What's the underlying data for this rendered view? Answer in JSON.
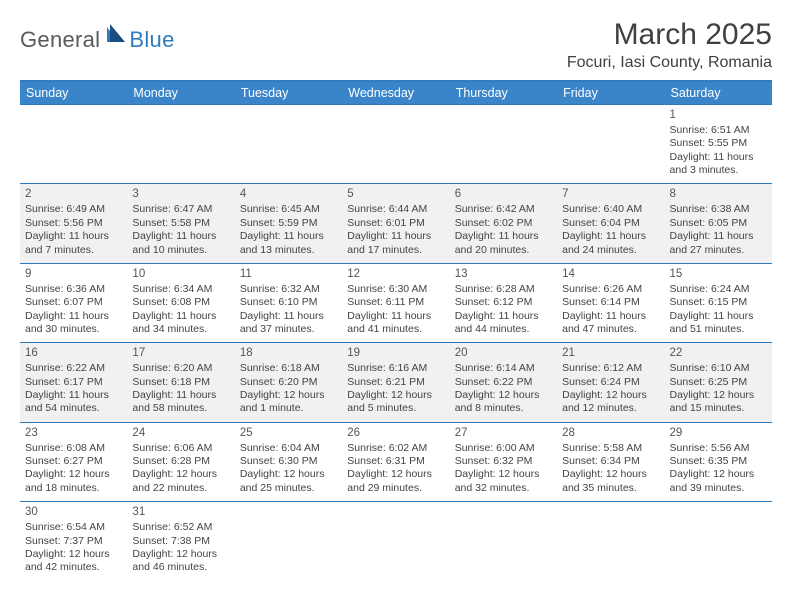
{
  "logo": {
    "general": "General",
    "blue": "Blue"
  },
  "title": {
    "month": "March 2025",
    "location": "Focuri, Iasi County, Romania"
  },
  "colors": {
    "header_bg": "#3a85c9",
    "header_border": "#2f7bbf",
    "row_alt_bg": "#f1f1f1",
    "text": "#444444",
    "logo_gray": "#5a5a5a",
    "logo_blue": "#2f7bbf"
  },
  "weekdays": [
    "Sunday",
    "Monday",
    "Tuesday",
    "Wednesday",
    "Thursday",
    "Friday",
    "Saturday"
  ],
  "weeks": [
    [
      null,
      null,
      null,
      null,
      null,
      null,
      {
        "n": "1",
        "sr": "Sunrise: 6:51 AM",
        "ss": "Sunset: 5:55 PM",
        "dl": "Daylight: 11 hours and 3 minutes."
      }
    ],
    [
      {
        "n": "2",
        "sr": "Sunrise: 6:49 AM",
        "ss": "Sunset: 5:56 PM",
        "dl": "Daylight: 11 hours and 7 minutes."
      },
      {
        "n": "3",
        "sr": "Sunrise: 6:47 AM",
        "ss": "Sunset: 5:58 PM",
        "dl": "Daylight: 11 hours and 10 minutes."
      },
      {
        "n": "4",
        "sr": "Sunrise: 6:45 AM",
        "ss": "Sunset: 5:59 PM",
        "dl": "Daylight: 11 hours and 13 minutes."
      },
      {
        "n": "5",
        "sr": "Sunrise: 6:44 AM",
        "ss": "Sunset: 6:01 PM",
        "dl": "Daylight: 11 hours and 17 minutes."
      },
      {
        "n": "6",
        "sr": "Sunrise: 6:42 AM",
        "ss": "Sunset: 6:02 PM",
        "dl": "Daylight: 11 hours and 20 minutes."
      },
      {
        "n": "7",
        "sr": "Sunrise: 6:40 AM",
        "ss": "Sunset: 6:04 PM",
        "dl": "Daylight: 11 hours and 24 minutes."
      },
      {
        "n": "8",
        "sr": "Sunrise: 6:38 AM",
        "ss": "Sunset: 6:05 PM",
        "dl": "Daylight: 11 hours and 27 minutes."
      }
    ],
    [
      {
        "n": "9",
        "sr": "Sunrise: 6:36 AM",
        "ss": "Sunset: 6:07 PM",
        "dl": "Daylight: 11 hours and 30 minutes."
      },
      {
        "n": "10",
        "sr": "Sunrise: 6:34 AM",
        "ss": "Sunset: 6:08 PM",
        "dl": "Daylight: 11 hours and 34 minutes."
      },
      {
        "n": "11",
        "sr": "Sunrise: 6:32 AM",
        "ss": "Sunset: 6:10 PM",
        "dl": "Daylight: 11 hours and 37 minutes."
      },
      {
        "n": "12",
        "sr": "Sunrise: 6:30 AM",
        "ss": "Sunset: 6:11 PM",
        "dl": "Daylight: 11 hours and 41 minutes."
      },
      {
        "n": "13",
        "sr": "Sunrise: 6:28 AM",
        "ss": "Sunset: 6:12 PM",
        "dl": "Daylight: 11 hours and 44 minutes."
      },
      {
        "n": "14",
        "sr": "Sunrise: 6:26 AM",
        "ss": "Sunset: 6:14 PM",
        "dl": "Daylight: 11 hours and 47 minutes."
      },
      {
        "n": "15",
        "sr": "Sunrise: 6:24 AM",
        "ss": "Sunset: 6:15 PM",
        "dl": "Daylight: 11 hours and 51 minutes."
      }
    ],
    [
      {
        "n": "16",
        "sr": "Sunrise: 6:22 AM",
        "ss": "Sunset: 6:17 PM",
        "dl": "Daylight: 11 hours and 54 minutes."
      },
      {
        "n": "17",
        "sr": "Sunrise: 6:20 AM",
        "ss": "Sunset: 6:18 PM",
        "dl": "Daylight: 11 hours and 58 minutes."
      },
      {
        "n": "18",
        "sr": "Sunrise: 6:18 AM",
        "ss": "Sunset: 6:20 PM",
        "dl": "Daylight: 12 hours and 1 minute."
      },
      {
        "n": "19",
        "sr": "Sunrise: 6:16 AM",
        "ss": "Sunset: 6:21 PM",
        "dl": "Daylight: 12 hours and 5 minutes."
      },
      {
        "n": "20",
        "sr": "Sunrise: 6:14 AM",
        "ss": "Sunset: 6:22 PM",
        "dl": "Daylight: 12 hours and 8 minutes."
      },
      {
        "n": "21",
        "sr": "Sunrise: 6:12 AM",
        "ss": "Sunset: 6:24 PM",
        "dl": "Daylight: 12 hours and 12 minutes."
      },
      {
        "n": "22",
        "sr": "Sunrise: 6:10 AM",
        "ss": "Sunset: 6:25 PM",
        "dl": "Daylight: 12 hours and 15 minutes."
      }
    ],
    [
      {
        "n": "23",
        "sr": "Sunrise: 6:08 AM",
        "ss": "Sunset: 6:27 PM",
        "dl": "Daylight: 12 hours and 18 minutes."
      },
      {
        "n": "24",
        "sr": "Sunrise: 6:06 AM",
        "ss": "Sunset: 6:28 PM",
        "dl": "Daylight: 12 hours and 22 minutes."
      },
      {
        "n": "25",
        "sr": "Sunrise: 6:04 AM",
        "ss": "Sunset: 6:30 PM",
        "dl": "Daylight: 12 hours and 25 minutes."
      },
      {
        "n": "26",
        "sr": "Sunrise: 6:02 AM",
        "ss": "Sunset: 6:31 PM",
        "dl": "Daylight: 12 hours and 29 minutes."
      },
      {
        "n": "27",
        "sr": "Sunrise: 6:00 AM",
        "ss": "Sunset: 6:32 PM",
        "dl": "Daylight: 12 hours and 32 minutes."
      },
      {
        "n": "28",
        "sr": "Sunrise: 5:58 AM",
        "ss": "Sunset: 6:34 PM",
        "dl": "Daylight: 12 hours and 35 minutes."
      },
      {
        "n": "29",
        "sr": "Sunrise: 5:56 AM",
        "ss": "Sunset: 6:35 PM",
        "dl": "Daylight: 12 hours and 39 minutes."
      }
    ],
    [
      {
        "n": "30",
        "sr": "Sunrise: 6:54 AM",
        "ss": "Sunset: 7:37 PM",
        "dl": "Daylight: 12 hours and 42 minutes."
      },
      {
        "n": "31",
        "sr": "Sunrise: 6:52 AM",
        "ss": "Sunset: 7:38 PM",
        "dl": "Daylight: 12 hours and 46 minutes."
      },
      null,
      null,
      null,
      null,
      null
    ]
  ]
}
